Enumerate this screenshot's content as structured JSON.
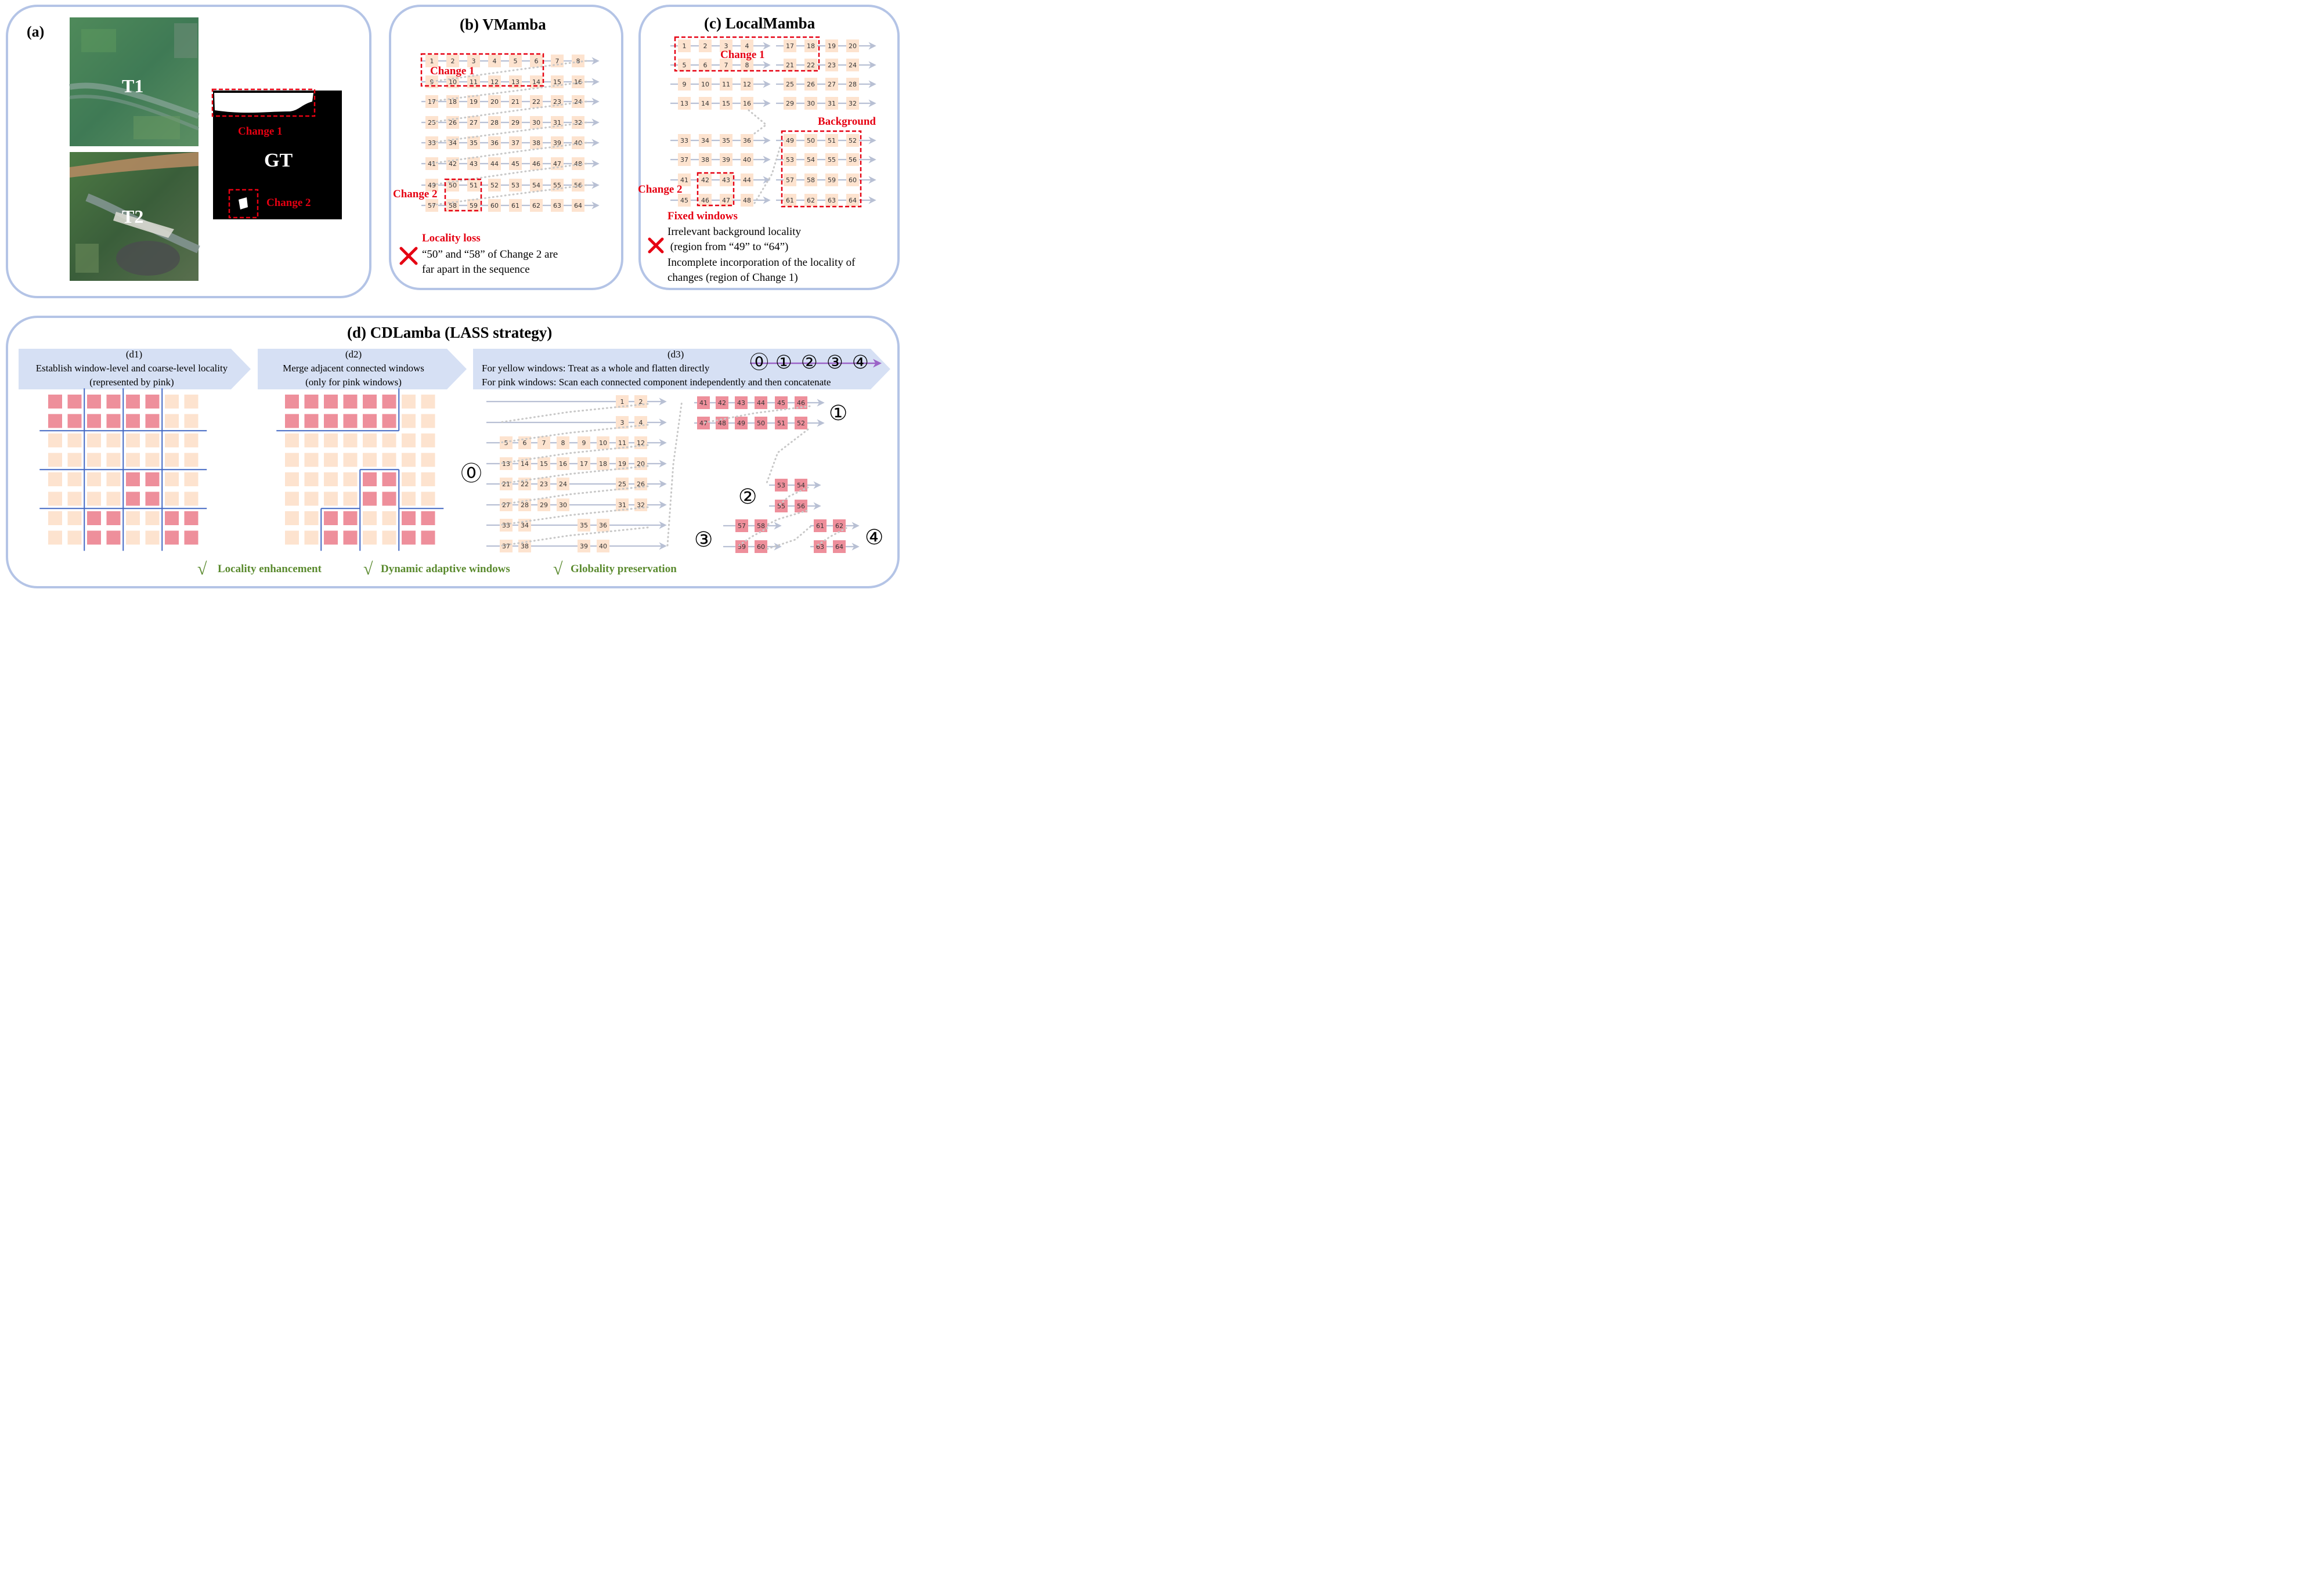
{
  "panel_a": {
    "title": "(a)",
    "t1": "T1",
    "t2": "T2",
    "gt": "GT",
    "change1": "Change 1",
    "change2": "Change 2"
  },
  "panel_b": {
    "title": "(b) VMamba",
    "change1": "Change 1",
    "change2": "Change 2",
    "issue_title": "Locality loss",
    "issue_lines": [
      "“50” and “58” of Change 2 are",
      "far apart in the sequence"
    ]
  },
  "panel_c": {
    "title": "(c) LocalMamba",
    "change1": "Change 1",
    "change2": "Change 2",
    "background": "Background",
    "issue_title": "Fixed windows",
    "issue_lines": [
      "Irrelevant background locality",
      " (region from “49” to “64”)",
      "Incomplete incorporation of the locality of",
      "changes (region of Change 1)"
    ]
  },
  "panel_d": {
    "title": "(d) CDLamba (LASS strategy)",
    "d1": {
      "label": "(d1)",
      "lines": [
        "Establish window-level and coarse-level locality",
        "(represented by pink)"
      ]
    },
    "d2": {
      "label": "(d2)",
      "lines": [
        "Merge adjacent connected windows",
        "(only for pink windows)"
      ]
    },
    "d3": {
      "label": "(d3)",
      "lines": [
        "For yellow windows: Treat as a whole and flatten directly",
        "For pink windows: Scan each connected component independently and then concatenate"
      ],
      "order_marks": [
        "⓪",
        "①",
        "②",
        "③",
        "④"
      ]
    },
    "benefits": [
      "Locality enhancement",
      "Dynamic adaptive windows",
      "Globality preservation"
    ],
    "check": "√"
  },
  "colors": {
    "panel_border": "#b4c4e6",
    "peach": "#fde3cf",
    "pink": "#ee8f9b",
    "red": "#e60012",
    "green": "#5a8a2e",
    "arrow": "#b8c0d4",
    "blue_line": "#4468c4",
    "banner": "#d6e0f4",
    "purple": "#9b63c7"
  }
}
